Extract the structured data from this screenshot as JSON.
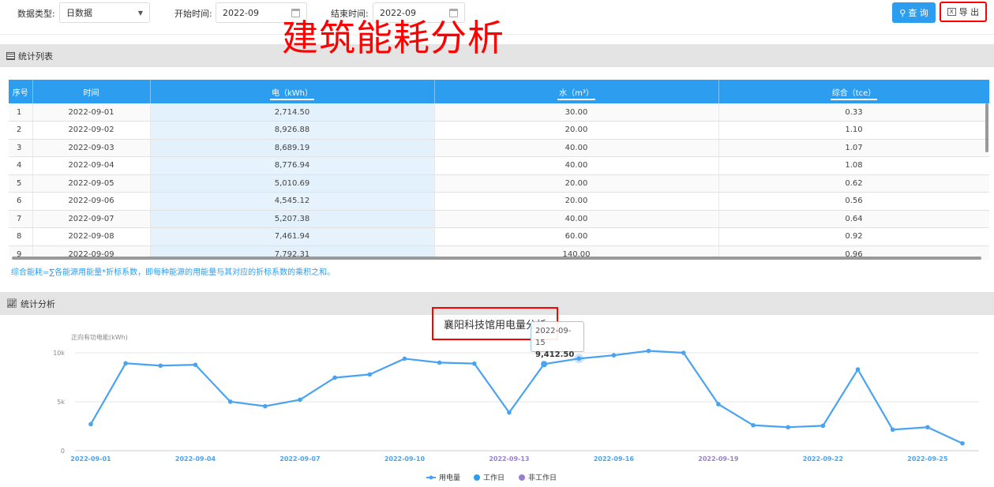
{
  "filters": {
    "type_label": "数据类型:",
    "type_value": "日数据",
    "start_label": "开始时间:",
    "start_value": "2022-09",
    "end_label": "结束时间:",
    "end_value": "2022-09"
  },
  "buttons": {
    "query": "查 询",
    "export": "导 出"
  },
  "overlay_title": "建筑能耗分析",
  "table_section": {
    "title": "统计列表"
  },
  "table": {
    "headers": [
      "序号",
      "时间",
      "电（kWh）",
      "水（m³）",
      "综合（tce）"
    ],
    "rows": [
      [
        "1",
        "2022-09-01",
        "2,714.50",
        "30.00",
        "0.33"
      ],
      [
        "2",
        "2022-09-02",
        "8,926.88",
        "20.00",
        "1.10"
      ],
      [
        "3",
        "2022-09-03",
        "8,689.19",
        "40.00",
        "1.07"
      ],
      [
        "4",
        "2022-09-04",
        "8,776.94",
        "40.00",
        "1.08"
      ],
      [
        "5",
        "2022-09-05",
        "5,010.69",
        "20.00",
        "0.62"
      ],
      [
        "6",
        "2022-09-06",
        "4,545.12",
        "20.00",
        "0.56"
      ],
      [
        "7",
        "2022-09-07",
        "5,207.38",
        "40.00",
        "0.64"
      ],
      [
        "8",
        "2022-09-08",
        "7,461.94",
        "60.00",
        "0.92"
      ],
      [
        "9",
        "2022-09-09",
        "7,792.31",
        "140.00",
        "0.96"
      ]
    ]
  },
  "note": "综合能耗=∑各能源用能量*折标系数，即每种能源的用能量与其对应的折标系数的乘积之和。",
  "chart_section": {
    "title": "统计分析"
  },
  "colors": {
    "accent": "#2d9df0",
    "line": "#4aa3f0",
    "non_workday": "#9a7fd1",
    "highlight_red": "#ff0000"
  },
  "chart_data": {
    "type": "line",
    "title": "襄阳科技馆用电量分析",
    "ylabel": "正向有功电能(kWh)",
    "ylim": [
      0,
      10000
    ],
    "yticks": [
      "0",
      "5k",
      "10k"
    ],
    "x": [
      "2022-09-01",
      "2022-09-02",
      "2022-09-03",
      "2022-09-04",
      "2022-09-05",
      "2022-09-06",
      "2022-09-07",
      "2022-09-08",
      "2022-09-09",
      "2022-09-10",
      "2022-09-11",
      "2022-09-12",
      "2022-09-13",
      "2022-09-14",
      "2022-09-15",
      "2022-09-16",
      "2022-09-17",
      "2022-09-18",
      "2022-09-19",
      "2022-09-20",
      "2022-09-21",
      "2022-09-22",
      "2022-09-23",
      "2022-09-24",
      "2022-09-25",
      "2022-09-26"
    ],
    "xtick_labels": [
      "2022-09-01",
      "2022-09-04",
      "2022-09-07",
      "2022-09-10",
      "2022-09-13",
      "2022-09-16",
      "2022-09-19",
      "2022-09-22",
      "2022-09-25"
    ],
    "series": [
      {
        "name": "用电量",
        "values": [
          2714.5,
          8926.88,
          8689.19,
          8776.94,
          5010.69,
          4545.12,
          5207.38,
          7461.94,
          7792.31,
          9400,
          9000,
          8900,
          3900,
          8850,
          9412.5,
          9750,
          10200,
          10000,
          4750,
          2600,
          2400,
          2550,
          8300,
          2150,
          2400,
          750
        ]
      }
    ],
    "legend": [
      "用电量",
      "工作日",
      "非工作日"
    ],
    "legend_position": "bottom",
    "grid": true,
    "tooltip": {
      "date": "2022-09-15",
      "value": "9,412.50"
    }
  }
}
